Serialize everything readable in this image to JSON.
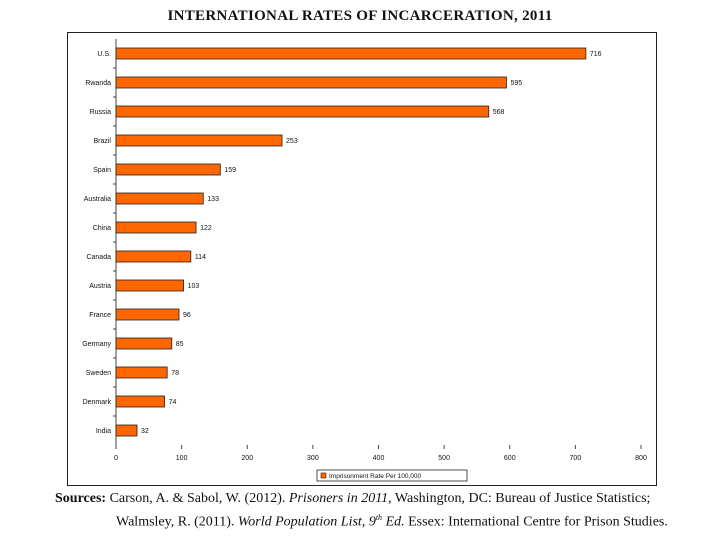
{
  "page": {
    "title": "INTERNATIONAL RATES OF INCARCERATION, 2011"
  },
  "chart_data": {
    "type": "bar",
    "orientation": "horizontal",
    "title": "INTERNATIONAL RATES OF INCARCERATION, 2011",
    "categories": [
      "U.S.",
      "Rwanda",
      "Russia",
      "Brazil",
      "Spain",
      "Australia",
      "China",
      "Canada",
      "Austria",
      "France",
      "Germany",
      "Sweden",
      "Denmark",
      "India"
    ],
    "values": [
      716,
      595,
      568,
      253,
      159,
      133,
      122,
      114,
      103,
      96,
      85,
      78,
      74,
      32
    ],
    "value_labels": [
      "716",
      "595",
      "568",
      "253",
      "159",
      "133",
      "122",
      "114",
      "103",
      "96",
      "85",
      "78",
      "74",
      "32"
    ],
    "xlim": [
      0,
      800
    ],
    "xticks": [
      0,
      100,
      200,
      300,
      400,
      500,
      600,
      700,
      800
    ],
    "xlabel": "",
    "ylabel": "",
    "grid": false,
    "legend": {
      "label": "Imprisonment Rate Per 100,000",
      "position": "bottom-center"
    },
    "bar_color": "#FF6600",
    "bar_edge_color": "#222222"
  },
  "sources": {
    "label": "Sources:",
    "line1_a": "Carson, A. & Sabol, W. (2012). ",
    "line1_italic": "Prisoners in 2011",
    "line1_b": ", Washington, DC: Bureau of Justice Statistics;",
    "line2_a": "Walmsley, R. (2011). ",
    "line2_italic_a": "World Population List, 9",
    "line2_sup": "th",
    "line2_italic_b": " Ed.",
    "line2_b": " Essex: International Centre for Prison Studies."
  }
}
